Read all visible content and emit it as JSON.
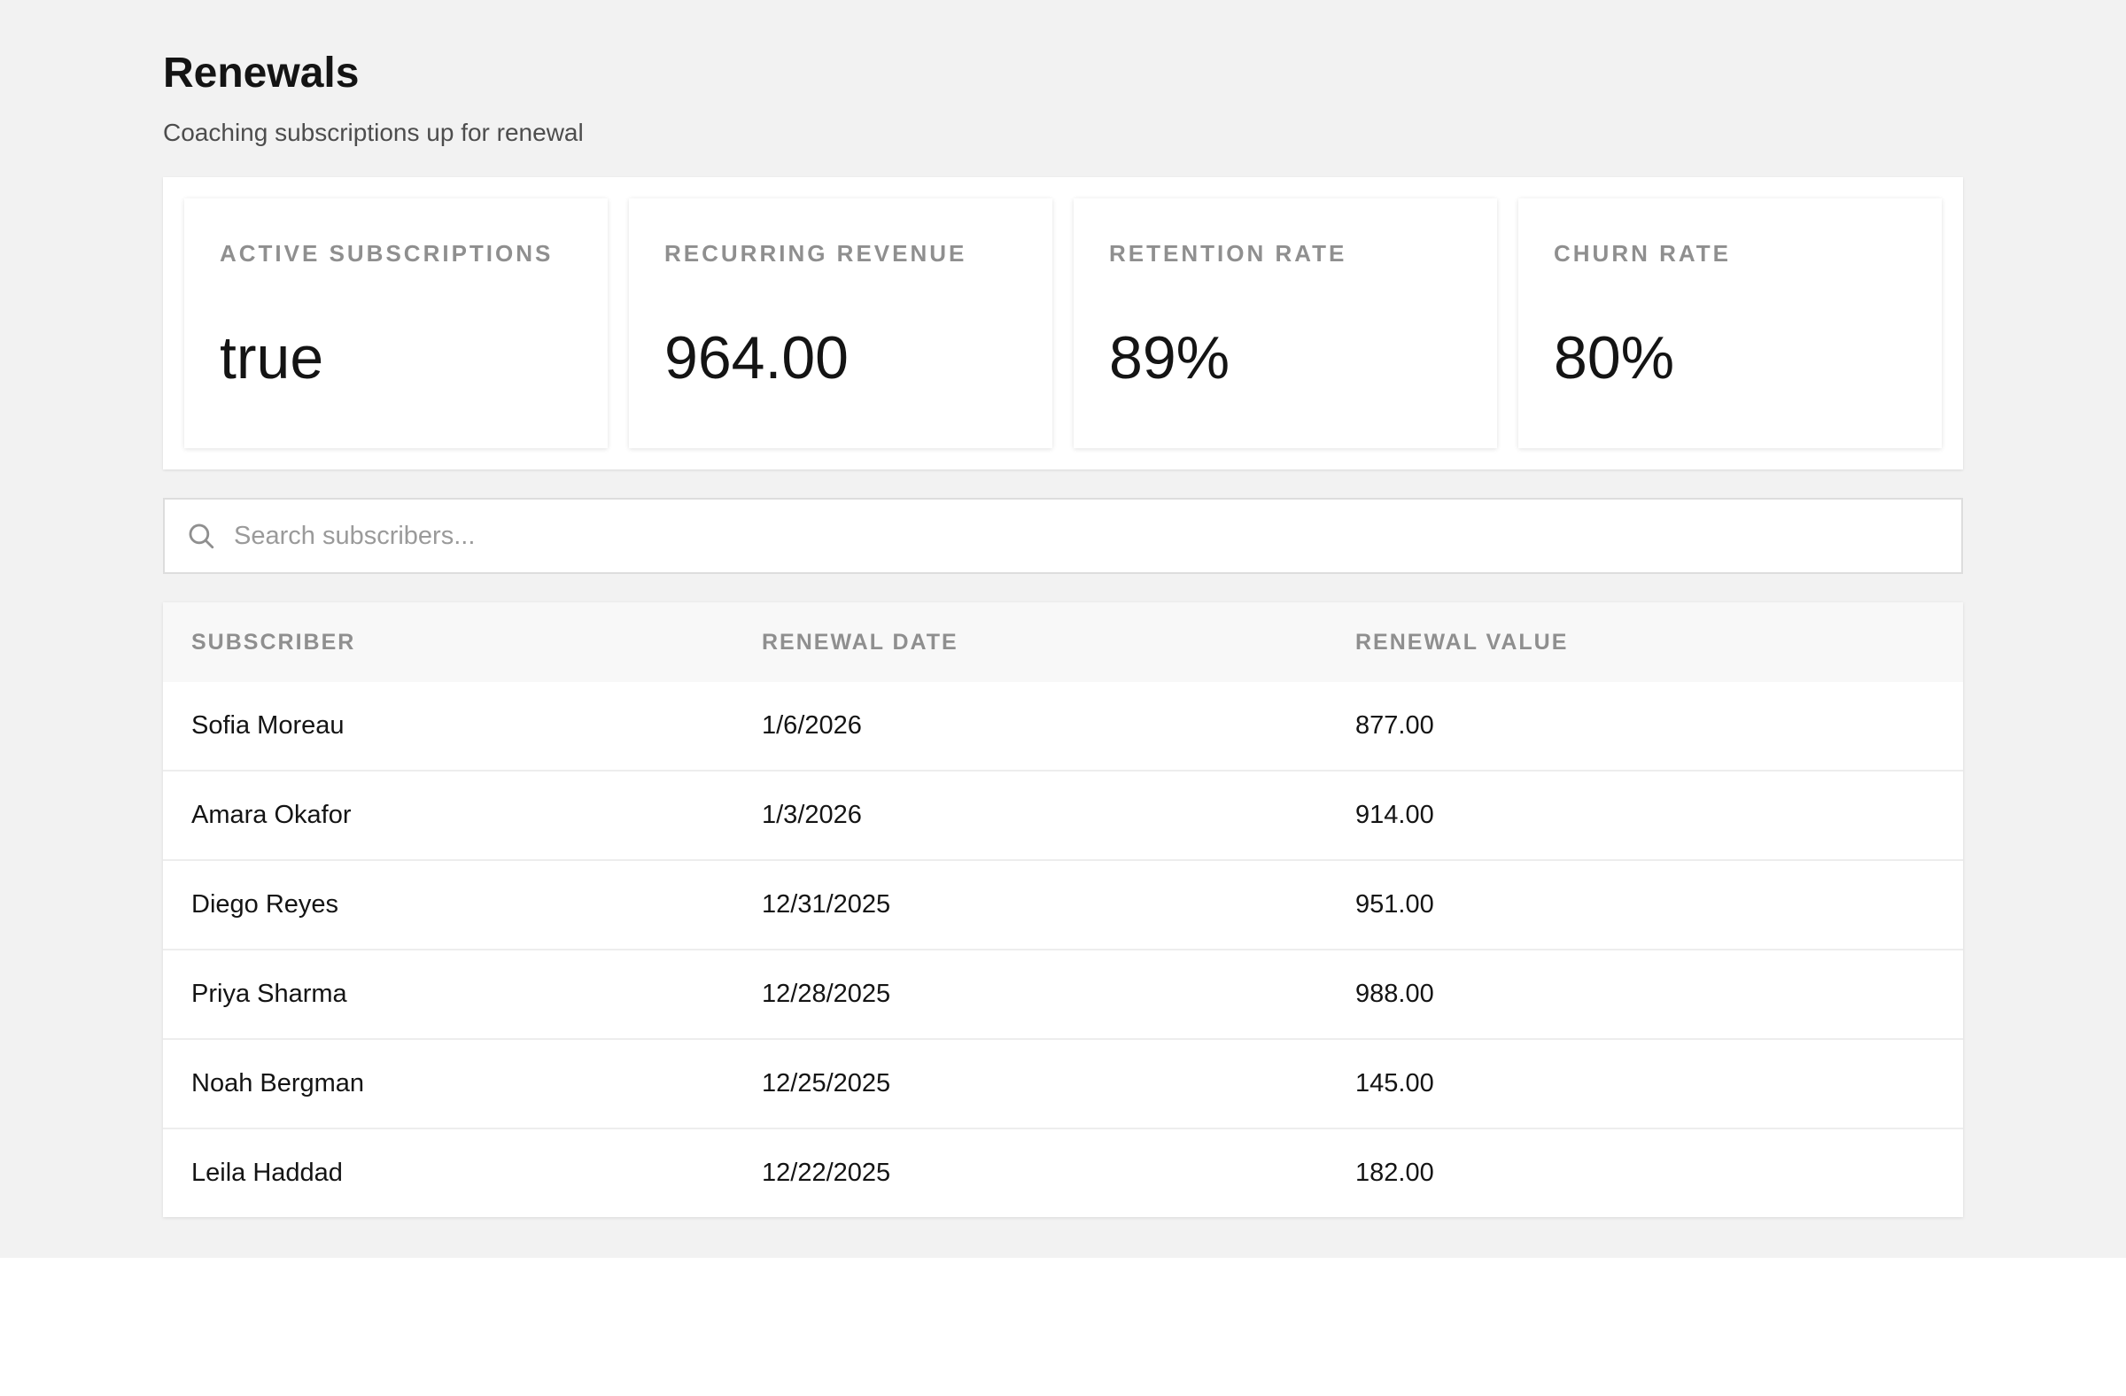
{
  "header": {
    "title": "Renewals",
    "subtitle": "Coaching subscriptions up for renewal"
  },
  "stats": [
    {
      "label": "ACTIVE SUBSCRIPTIONS",
      "value": "true"
    },
    {
      "label": "RECURRING REVENUE",
      "value": "964.00"
    },
    {
      "label": "RETENTION RATE",
      "value": "89%"
    },
    {
      "label": "CHURN RATE",
      "value": "80%"
    }
  ],
  "search": {
    "placeholder": "Search subscribers...",
    "value": "",
    "icon": "search-icon"
  },
  "table": {
    "columns": [
      "SUBSCRIBER",
      "RENEWAL DATE",
      "RENEWAL VALUE"
    ],
    "rows": [
      {
        "subscriber": "Sofia Moreau",
        "renewal_date": "1/6/2026",
        "renewal_value": "877.00"
      },
      {
        "subscriber": "Amara Okafor",
        "renewal_date": "1/3/2026",
        "renewal_value": "914.00"
      },
      {
        "subscriber": "Diego Reyes",
        "renewal_date": "12/31/2025",
        "renewal_value": "951.00"
      },
      {
        "subscriber": "Priya Sharma",
        "renewal_date": "12/28/2025",
        "renewal_value": "988.00"
      },
      {
        "subscriber": "Noah Bergman",
        "renewal_date": "12/25/2025",
        "renewal_value": "145.00"
      },
      {
        "subscriber": "Leila Haddad",
        "renewal_date": "12/22/2025",
        "renewal_value": "182.00"
      }
    ]
  },
  "colors": {
    "page_background": "#f2f2f2",
    "card_background": "#ffffff",
    "muted_text": "#8f8f8f",
    "primary_text": "#141414"
  }
}
